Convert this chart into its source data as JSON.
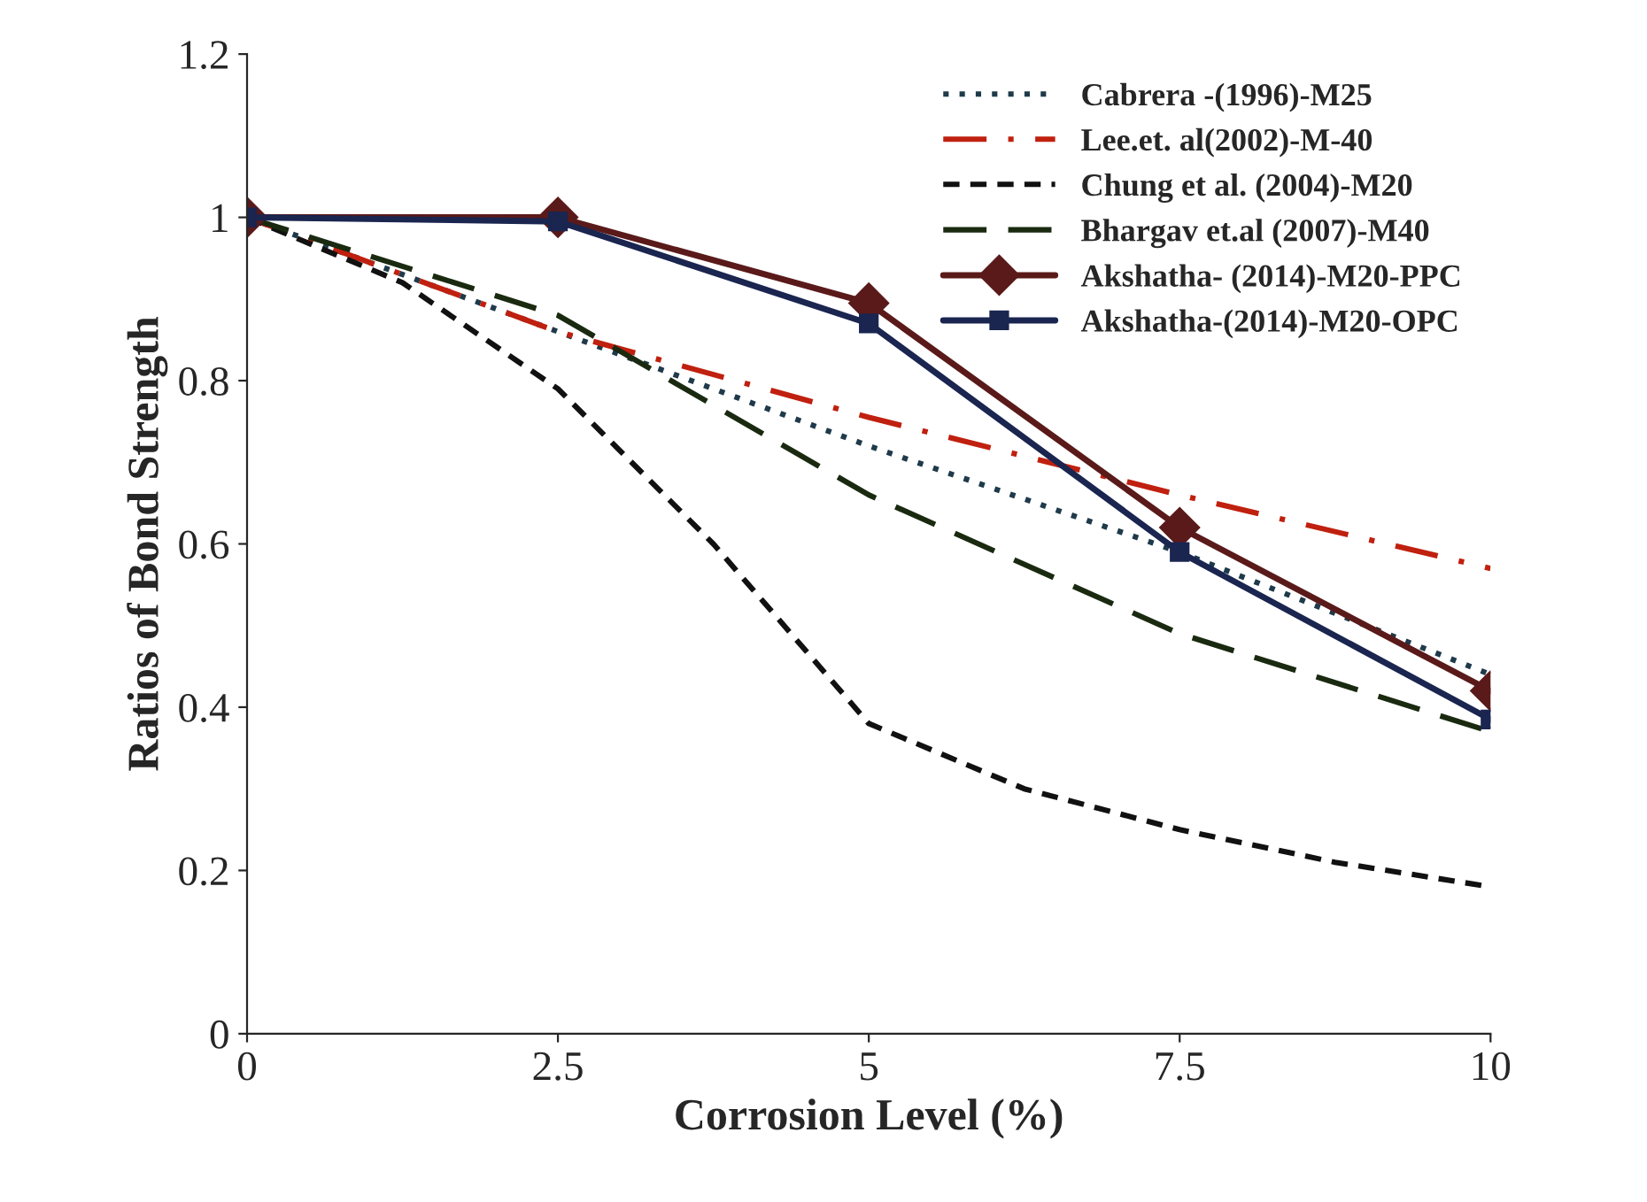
{
  "chart_data": {
    "type": "line",
    "xlabel": "Corrosion Level (%)",
    "ylabel": "Ratios of Bond Strength",
    "x": [
      0,
      2.5,
      5,
      7.5,
      10
    ],
    "xlim": [
      0,
      10
    ],
    "xticks": [
      0,
      2.5,
      5,
      7.5,
      10
    ],
    "ylim": [
      0,
      1.2
    ],
    "yticks": [
      0,
      {
        "value": 0.2,
        "label": "0.2"
      },
      {
        "value": 0.4,
        "label": "0.4"
      },
      {
        "value": 0.6,
        "label": "0.6"
      },
      {
        "value": 0.8,
        "label": "0.8"
      },
      1,
      {
        "value": 1.2,
        "label": "1.2"
      }
    ],
    "grid": false,
    "legend": "top right",
    "series": [
      {
        "name": "Cabrera -(1996)-M25",
        "color": "#1f3a4a",
        "line_style": "dotted",
        "marker": "none",
        "values": [
          1,
          0.86,
          0.72,
          0.59,
          0.44
        ]
      },
      {
        "name": "Lee.et. al(2002)-M-40",
        "color": "#c0200f",
        "line_style": "dashdot",
        "marker": "none",
        "values": [
          1,
          0.86,
          0.755,
          0.66,
          0.57
        ]
      },
      {
        "name": "Chung et al. (2004)-M20",
        "color": "#111111",
        "line_style": "dashed",
        "marker": "none",
        "x": [
          0,
          1.25,
          2.5,
          3.75,
          5,
          6.25,
          7.5,
          8.75,
          10
        ],
        "values": [
          1,
          0.92,
          0.79,
          0.6,
          0.38,
          0.3,
          0.25,
          0.21,
          0.18
        ]
      },
      {
        "name": "Bhargav et.al (2007)-M40",
        "color": "#1a2a10",
        "line_style": "longdash",
        "marker": "none",
        "values": [
          1,
          0.88,
          0.66,
          0.49,
          0.37
        ]
      },
      {
        "name": "Akshatha- (2014)-M20-PPC",
        "color": "#5a1a1a",
        "line_style": "solid",
        "marker": "diamond",
        "values": [
          1,
          1.0,
          0.895,
          0.62,
          0.42
        ]
      },
      {
        "name": "Akshatha-(2014)-M20-OPC",
        "color": "#1a2550",
        "line_style": "solid",
        "marker": "square",
        "values": [
          1,
          0.995,
          0.87,
          0.59,
          0.385
        ]
      }
    ]
  }
}
